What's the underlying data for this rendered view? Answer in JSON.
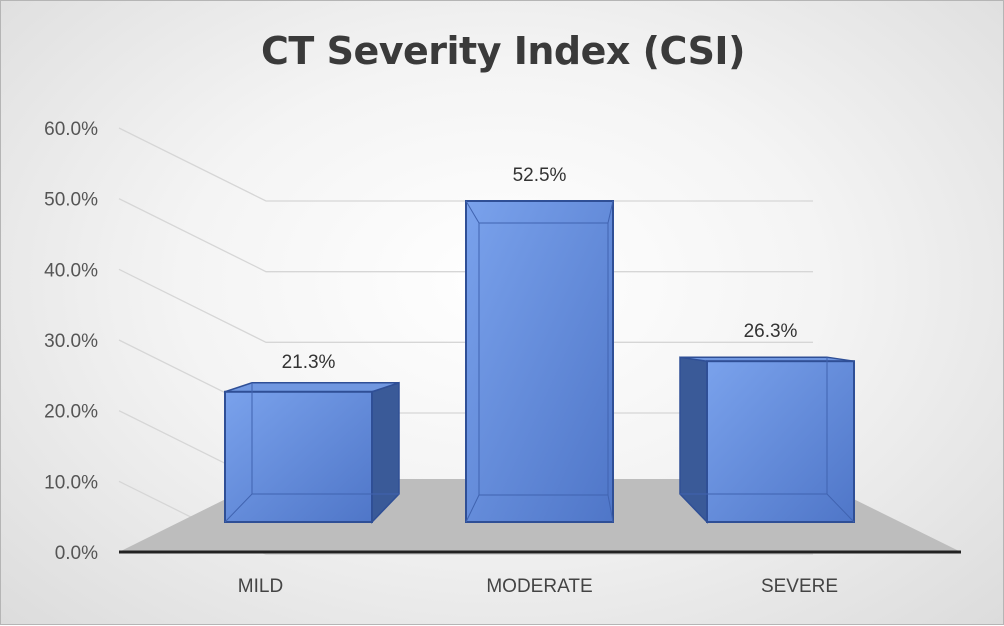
{
  "chart_data": {
    "type": "bar",
    "title": "CT Severity Index (CSI)",
    "categories": [
      "MILD",
      "MODERATE",
      "SEVERE"
    ],
    "values": [
      21.3,
      52.5,
      26.3
    ],
    "data_labels": [
      "21.3%",
      "52.5%",
      "26.3%"
    ],
    "ylim": [
      0,
      60
    ],
    "yticks": [
      "0.0%",
      "10.0%",
      "20.0%",
      "30.0%",
      "40.0%",
      "50.0%",
      "60.0%"
    ],
    "grid": true,
    "legend": "none",
    "style": "3d-column",
    "colors": {
      "bar_front": "#5b83d4",
      "bar_edge": "#2f4f96",
      "bar_side": "#3a5a98",
      "floor": "#bdbdbd",
      "gridline": "#d6d6d6"
    }
  }
}
